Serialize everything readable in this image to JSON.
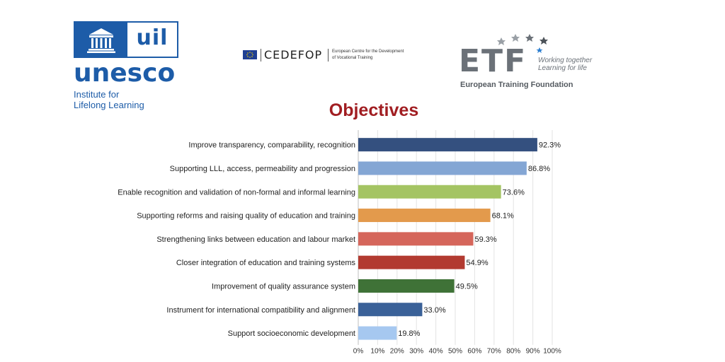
{
  "logos": {
    "unesco": {
      "box_text": "uil",
      "word": "unesco",
      "sub_line1": "Institute for",
      "sub_line2": "Lifelong Learning",
      "color": "#1d5ca8"
    },
    "cedefop": {
      "word": "CEDEFOP",
      "sub_line1": "European Centre for the Development",
      "sub_line2": "of Vocational Training"
    },
    "etf": {
      "word": "ETF",
      "tag_line1": "Working together",
      "tag_line2": "Learning for life",
      "name": "European Training Foundation"
    }
  },
  "chart_data": {
    "type": "bar",
    "orientation": "horizontal",
    "title": "Objectives",
    "categories": [
      "Improve transparency, comparability, recognition",
      "Supporting LLL, access, permeability and progression",
      "Enable recognition and validation of non-formal and informal learning",
      "Supporting reforms and raising quality of education and training",
      "Strengthening links between education and labour market",
      "Closer integration of education and training systems",
      "Improvement of quality assurance system",
      "Instrument for international compatibility and alignment",
      "Support socioeconomic development"
    ],
    "values": [
      92.3,
      86.8,
      73.6,
      68.1,
      59.3,
      54.9,
      49.5,
      33.0,
      19.8
    ],
    "value_labels": [
      "92.3%",
      "86.8%",
      "73.6%",
      "68.1%",
      "59.3%",
      "54.9%",
      "49.5%",
      "33.0%",
      "19.8%"
    ],
    "colors": [
      "#34507f",
      "#84a6d4",
      "#a4c463",
      "#e39a4c",
      "#d5665b",
      "#b23a30",
      "#3f7237",
      "#3a6198",
      "#a6c8f0"
    ],
    "xlim": [
      0,
      100
    ],
    "xticks": [
      "0%",
      "10%",
      "20%",
      "30%",
      "40%",
      "50%",
      "60%",
      "70%",
      "80%",
      "90%",
      "100%"
    ],
    "grid": true
  }
}
